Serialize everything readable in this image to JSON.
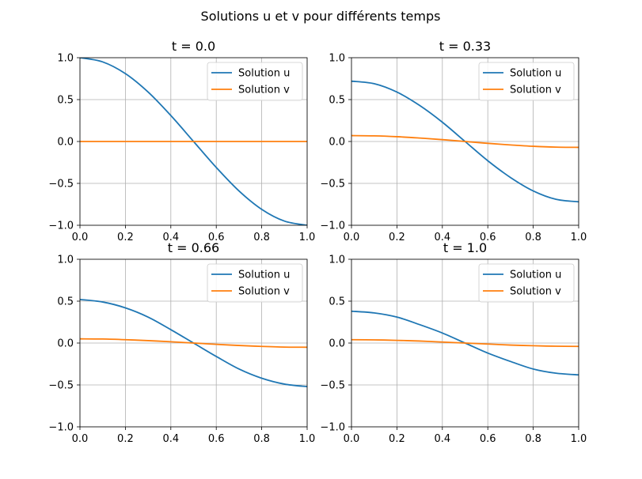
{
  "figure": {
    "suptitle": "Solutions u et v pour différents temps"
  },
  "colors": {
    "u": "#1f77b4",
    "v": "#ff7f0e",
    "grid": "#b0b0b0",
    "axis": "#000000"
  },
  "chart_data": [
    {
      "type": "line",
      "title": "t = 0.0",
      "xlim": [
        0,
        1
      ],
      "ylim": [
        -1,
        1
      ],
      "xticks": [
        "0.0",
        "0.2",
        "0.4",
        "0.6",
        "0.8",
        "1.0"
      ],
      "yticks": [
        "−1.0",
        "−0.5",
        "0.0",
        "0.5",
        "1.0"
      ],
      "grid": true,
      "legend_position": "top-right",
      "x": [
        0,
        0.1,
        0.2,
        0.3,
        0.4,
        0.5,
        0.6,
        0.7,
        0.8,
        0.9,
        1.0
      ],
      "series": [
        {
          "name": "Solution u",
          "values": [
            1.0,
            0.95,
            0.81,
            0.59,
            0.31,
            0.0,
            -0.31,
            -0.59,
            -0.81,
            -0.95,
            -1.0
          ]
        },
        {
          "name": "Solution v",
          "values": [
            0,
            0,
            0,
            0,
            0,
            0,
            0,
            0,
            0,
            0,
            0
          ]
        }
      ]
    },
    {
      "type": "line",
      "title": "t = 0.33",
      "xlim": [
        0,
        1
      ],
      "ylim": [
        -1,
        1
      ],
      "xticks": [
        "0.0",
        "0.2",
        "0.4",
        "0.6",
        "0.8",
        "1.0"
      ],
      "yticks": [
        "−1.0",
        "−0.5",
        "0.0",
        "0.5",
        "1.0"
      ],
      "grid": true,
      "legend_position": "top-right",
      "x": [
        0,
        0.1,
        0.2,
        0.3,
        0.4,
        0.5,
        0.6,
        0.7,
        0.8,
        0.9,
        1.0
      ],
      "series": [
        {
          "name": "Solution u",
          "values": [
            0.72,
            0.69,
            0.59,
            0.43,
            0.23,
            0.0,
            -0.23,
            -0.43,
            -0.59,
            -0.69,
            -0.72
          ]
        },
        {
          "name": "Solution v",
          "values": [
            0.07,
            0.067,
            0.057,
            0.041,
            0.022,
            0.0,
            -0.022,
            -0.041,
            -0.057,
            -0.067,
            -0.07
          ]
        }
      ]
    },
    {
      "type": "line",
      "title": "t = 0.66",
      "xlim": [
        0,
        1
      ],
      "ylim": [
        -1,
        1
      ],
      "xticks": [
        "0.0",
        "0.2",
        "0.4",
        "0.6",
        "0.8",
        "1.0"
      ],
      "yticks": [
        "−1.0",
        "−0.5",
        "0.0",
        "0.5",
        "1.0"
      ],
      "grid": true,
      "legend_position": "top-right",
      "x": [
        0,
        0.1,
        0.2,
        0.3,
        0.4,
        0.5,
        0.6,
        0.7,
        0.8,
        0.9,
        1.0
      ],
      "series": [
        {
          "name": "Solution u",
          "values": [
            0.52,
            0.49,
            0.42,
            0.31,
            0.16,
            0.0,
            -0.16,
            -0.31,
            -0.42,
            -0.49,
            -0.52
          ]
        },
        {
          "name": "Solution v",
          "values": [
            0.05,
            0.048,
            0.04,
            0.029,
            0.015,
            0.0,
            -0.015,
            -0.029,
            -0.04,
            -0.048,
            -0.05
          ]
        }
      ]
    },
    {
      "type": "line",
      "title": "t = 1.0",
      "xlim": [
        0,
        1
      ],
      "ylim": [
        -1,
        1
      ],
      "xticks": [
        "0.0",
        "0.2",
        "0.4",
        "0.6",
        "0.8",
        "1.0"
      ],
      "yticks": [
        "−1.0",
        "−0.5",
        "0.0",
        "0.5",
        "1.0"
      ],
      "grid": true,
      "legend_position": "top-right",
      "x": [
        0,
        0.1,
        0.2,
        0.3,
        0.4,
        0.5,
        0.6,
        0.7,
        0.8,
        0.9,
        1.0
      ],
      "series": [
        {
          "name": "Solution u",
          "values": [
            0.38,
            0.36,
            0.31,
            0.22,
            0.12,
            0.0,
            -0.12,
            -0.22,
            -0.31,
            -0.36,
            -0.38
          ]
        },
        {
          "name": "Solution v",
          "values": [
            0.04,
            0.038,
            0.032,
            0.024,
            0.012,
            0.0,
            -0.012,
            -0.024,
            -0.032,
            -0.038,
            -0.04
          ]
        }
      ]
    }
  ]
}
